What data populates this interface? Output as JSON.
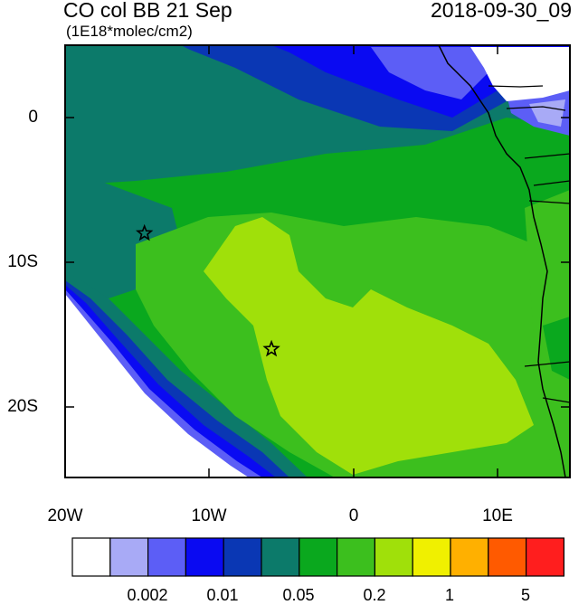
{
  "title": {
    "left": "CO col BB 21 Sep",
    "right": "2018-09-30_09",
    "units": "(1E18*molec/cm2)"
  },
  "axes": {
    "lat_labels": [
      "0",
      "10S",
      "20S"
    ],
    "lon_labels": [
      "20W",
      "10W",
      "0",
      "10E"
    ]
  },
  "colorbar": {
    "colors": [
      "#ffffff",
      "#a8aaf6",
      "#5c5ef6",
      "#0a0af2",
      "#0a37b4",
      "#0c7a6a",
      "#0aa81e",
      "#3cbf1e",
      "#a0e00a",
      "#f0f000",
      "#ffb000",
      "#ff5a00",
      "#ff1e1e"
    ],
    "labels": [
      "0.002",
      "0.01",
      "0.05",
      "0.2",
      "1",
      "5"
    ]
  },
  "markers": {
    "stars": [
      {
        "lon": -14.5,
        "lat": -8.0
      },
      {
        "lon": -5.7,
        "lat": -16.0
      }
    ]
  }
}
